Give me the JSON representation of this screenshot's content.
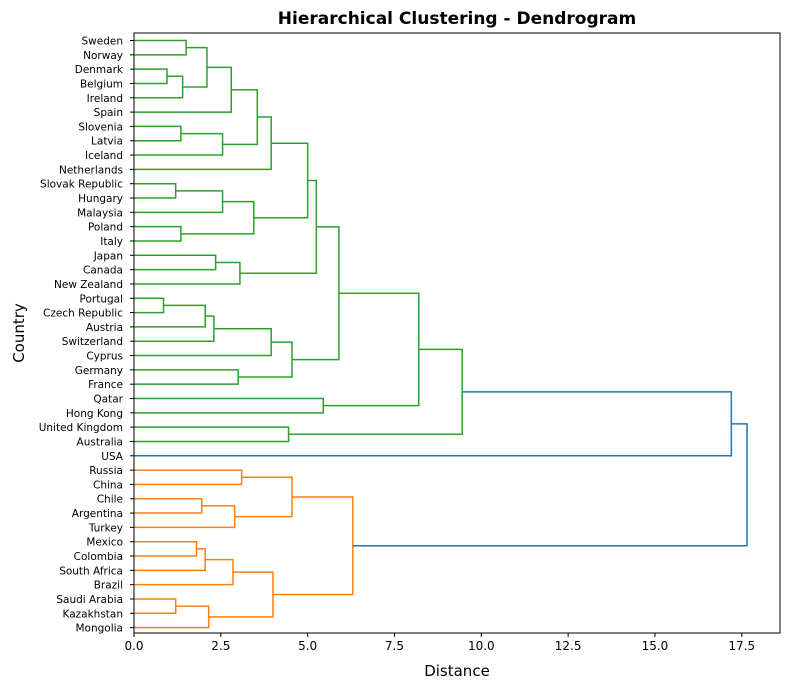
{
  "chart_data": {
    "type": "dendrogram",
    "title": "Hierarchical Clustering - Dendrogram",
    "xlabel": "Distance",
    "ylabel": "Country",
    "xlim": [
      0,
      18.6
    ],
    "xticks": [
      "0.0",
      "2.5",
      "5.0",
      "7.5",
      "10.0",
      "12.5",
      "15.0",
      "17.5"
    ],
    "xtick_values": [
      0,
      2.5,
      5,
      7.5,
      10,
      12.5,
      15,
      17.5
    ],
    "grid": false,
    "colors": {
      "cluster_a": "#2ca02c",
      "cluster_b": "#ff7f0e",
      "above_threshold": "#1f77b4"
    },
    "leaves": [
      "Sweden",
      "Norway",
      "Denmark",
      "Belgium",
      "Ireland",
      "Spain",
      "Slovenia",
      "Latvia",
      "Iceland",
      "Netherlands",
      "Slovak Republic",
      "Hungary",
      "Malaysia",
      "Poland",
      "Italy",
      "Japan",
      "Canada",
      "New Zealand",
      "Portugal",
      "Czech Republic",
      "Austria",
      "Switzerland",
      "Cyprus",
      "Germany",
      "France",
      "Qatar",
      "Hong Kong",
      "United Kingdom",
      "Australia",
      "USA",
      "Russia",
      "China",
      "Chile",
      "Argentina",
      "Turkey",
      "Mexico",
      "Colombia",
      "South Africa",
      "Brazil",
      "Saudi Arabia",
      "Kazakhstan",
      "Mongolia"
    ],
    "merges": [
      {
        "a": "Sweden",
        "b": "Norway",
        "distance": 1.5,
        "color": "#2ca02c"
      },
      {
        "a": "Denmark",
        "b": "Belgium",
        "distance": 0.95,
        "color": "#2ca02c"
      },
      {
        "a": "Denmark+Belgium",
        "b": "Ireland",
        "distance": 1.4,
        "color": "#2ca02c"
      },
      {
        "a": "Sweden+Norway",
        "b": "Denmark+Belgium+Ireland",
        "distance": 2.1,
        "color": "#2ca02c"
      },
      {
        "a": "Sweden..Ireland",
        "b": "Spain",
        "distance": 2.8,
        "color": "#2ca02c"
      },
      {
        "a": "Slovenia",
        "b": "Latvia",
        "distance": 1.35,
        "color": "#2ca02c"
      },
      {
        "a": "Slovenia+Latvia",
        "b": "Iceland",
        "distance": 2.55,
        "color": "#2ca02c"
      },
      {
        "a": "Sweden..Spain",
        "b": "Slovenia+Latvia+Iceland",
        "distance": 3.55,
        "color": "#2ca02c"
      },
      {
        "a": "Sweden..Iceland",
        "b": "Netherlands",
        "distance": 3.95,
        "color": "#2ca02c"
      },
      {
        "a": "Slovak Republic",
        "b": "Hungary",
        "distance": 1.2,
        "color": "#2ca02c"
      },
      {
        "a": "Slovak Republic+Hungary",
        "b": "Malaysia",
        "distance": 2.55,
        "color": "#2ca02c"
      },
      {
        "a": "Poland",
        "b": "Italy",
        "distance": 1.35,
        "color": "#2ca02c"
      },
      {
        "a": "Slovak Republic+Hungary+Malaysia",
        "b": "Poland+Italy",
        "distance": 3.45,
        "color": "#2ca02c"
      },
      {
        "a": "Sweden..Netherlands",
        "b": "Slovak Republic..Italy",
        "distance": 5.0,
        "color": "#2ca02c"
      },
      {
        "a": "Japan",
        "b": "Canada",
        "distance": 2.35,
        "color": "#2ca02c"
      },
      {
        "a": "Japan+Canada",
        "b": "New Zealand",
        "distance": 3.05,
        "color": "#2ca02c"
      },
      {
        "a": "Sweden..Italy",
        "b": "Japan+Canada+New Zealand",
        "distance": 5.25,
        "color": "#2ca02c"
      },
      {
        "a": "Portugal",
        "b": "Czech Republic",
        "distance": 0.85,
        "color": "#2ca02c"
      },
      {
        "a": "Portugal+Czech Republic",
        "b": "Austria",
        "distance": 2.05,
        "color": "#2ca02c"
      },
      {
        "a": "Portugal+Czech Republic+Austria",
        "b": "Switzerland",
        "distance": 2.3,
        "color": "#2ca02c"
      },
      {
        "a": "Portugal..Switzerland",
        "b": "Cyprus",
        "distance": 3.95,
        "color": "#2ca02c"
      },
      {
        "a": "Germany",
        "b": "France",
        "distance": 3.0,
        "color": "#2ca02c"
      },
      {
        "a": "Portugal..Cyprus",
        "b": "Germany+France",
        "distance": 4.55,
        "color": "#2ca02c"
      },
      {
        "a": "Sweden..New Zealand",
        "b": "Portugal..France",
        "distance": 5.9,
        "color": "#2ca02c"
      },
      {
        "a": "Qatar",
        "b": "Hong Kong",
        "distance": 5.45,
        "color": "#2ca02c"
      },
      {
        "a": "Sweden..France",
        "b": "Qatar+Hong Kong",
        "distance": 8.2,
        "color": "#2ca02c"
      },
      {
        "a": "United Kingdom",
        "b": "Australia",
        "distance": 4.45,
        "color": "#2ca02c"
      },
      {
        "a": "Sweden..Hong Kong",
        "b": "United Kingdom+Australia",
        "distance": 9.45,
        "color": "#2ca02c"
      },
      {
        "a": "Sweden..Australia",
        "b": "USA",
        "distance": 17.2,
        "color": "#1f77b4"
      },
      {
        "a": "Russia",
        "b": "China",
        "distance": 3.1,
        "color": "#ff7f0e"
      },
      {
        "a": "Chile",
        "b": "Argentina",
        "distance": 1.95,
        "color": "#ff7f0e"
      },
      {
        "a": "Chile+Argentina",
        "b": "Turkey",
        "distance": 2.9,
        "color": "#ff7f0e"
      },
      {
        "a": "Russia+China",
        "b": "Chile+Argentina+Turkey",
        "distance": 4.55,
        "color": "#ff7f0e"
      },
      {
        "a": "Mexico",
        "b": "Colombia",
        "distance": 1.8,
        "color": "#ff7f0e"
      },
      {
        "a": "Mexico+Colombia",
        "b": "South Africa",
        "distance": 2.05,
        "color": "#ff7f0e"
      },
      {
        "a": "Mexico+Colombia+South Africa",
        "b": "Brazil",
        "distance": 2.85,
        "color": "#ff7f0e"
      },
      {
        "a": "Saudi Arabia",
        "b": "Kazakhstan",
        "distance": 1.2,
        "color": "#ff7f0e"
      },
      {
        "a": "Saudi Arabia+Kazakhstan",
        "b": "Mongolia",
        "distance": 2.15,
        "color": "#ff7f0e"
      },
      {
        "a": "Mexico..Brazil",
        "b": "Saudi Arabia..Mongolia",
        "distance": 4.0,
        "color": "#ff7f0e"
      },
      {
        "a": "Russia..Turkey",
        "b": "Mexico..Mongolia",
        "distance": 6.3,
        "color": "#ff7f0e"
      },
      {
        "a": "Sweden..USA",
        "b": "Russia..Mongolia",
        "distance": 17.65,
        "color": "#1f77b4"
      }
    ]
  }
}
